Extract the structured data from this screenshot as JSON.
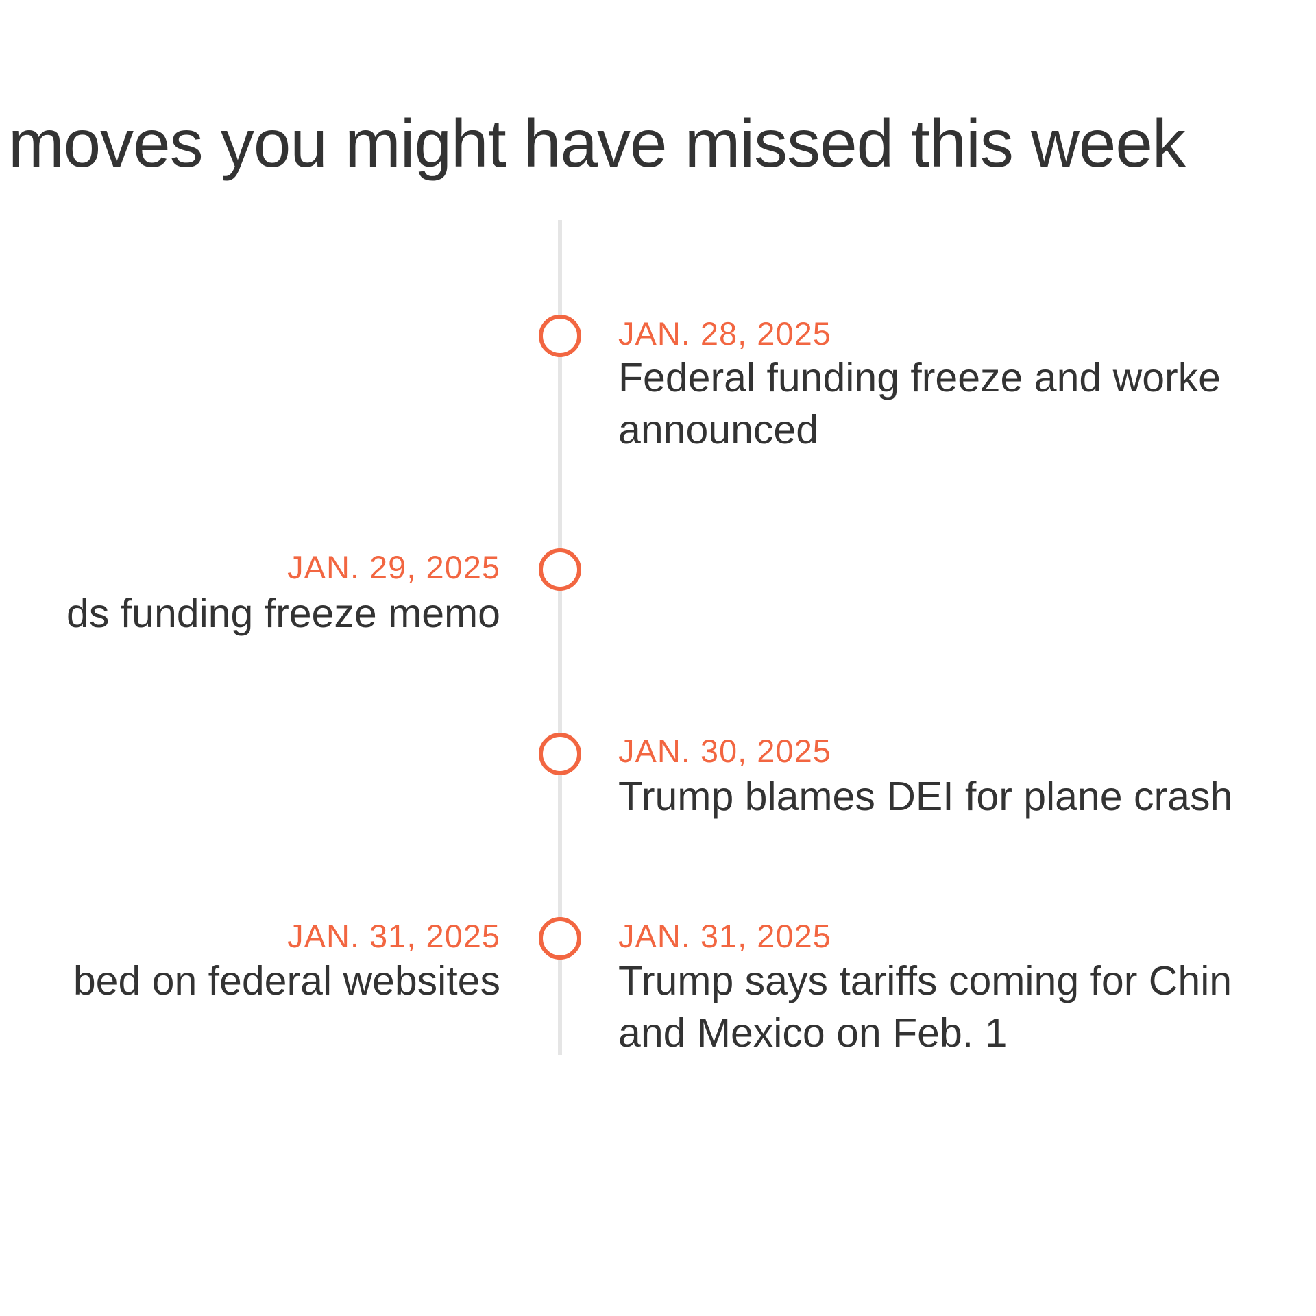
{
  "header": {
    "title": "moves you might have missed this week"
  },
  "events": [
    {
      "date": "JAN. 28, 2025",
      "lines": [
        "Federal funding freeze and worke",
        "announced"
      ]
    },
    {
      "date": "JAN. 29, 2025",
      "lines": [
        "ds funding freeze memo"
      ]
    },
    {
      "date": "JAN. 30, 2025",
      "lines": [
        "Trump blames DEI for plane crash"
      ]
    },
    {
      "date": "JAN. 31, 2025",
      "lines": [
        "bed on federal websites"
      ]
    },
    {
      "date": "JAN. 31, 2025",
      "lines": [
        "Trump says tariffs coming for Chin",
        "and Mexico on Feb. 1"
      ]
    }
  ]
}
